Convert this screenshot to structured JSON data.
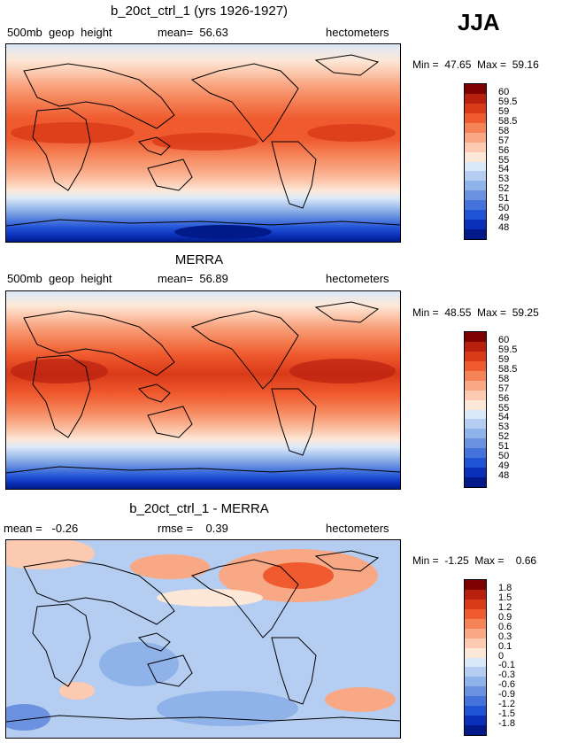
{
  "season": "JJA",
  "panels": [
    {
      "title": "b_20ct_ctrl_1 (yrs 1926-1927)",
      "left_label": "500mb  geop  height",
      "center_label": "mean=  56.63",
      "right_label": "hectometers",
      "minmax": "Min =  47.65  Max =  59.16",
      "colorbar": {
        "labels": [
          "60",
          "59.5",
          "59",
          "58.5",
          "58",
          "57",
          "56",
          "55",
          "54",
          "53",
          "52",
          "51",
          "50",
          "49",
          "48"
        ],
        "colors": [
          "#7f0000",
          "#b81f0f",
          "#d93a18",
          "#ef5a2e",
          "#f58358",
          "#f9a885",
          "#fccab0",
          "#fde8d8",
          "#dbe8f8",
          "#b5cdf0",
          "#8fb2e8",
          "#6b92e0",
          "#4473dc",
          "#2052d6",
          "#0a2fb8",
          "#001a8a"
        ]
      }
    },
    {
      "title": "MERRA",
      "left_label": "500mb  geop  height",
      "center_label": "mean=  56.89",
      "right_label": "hectometers",
      "minmax": "Min =  48.55  Max =  59.25",
      "colorbar": {
        "labels": [
          "60",
          "59.5",
          "59",
          "58.5",
          "58",
          "57",
          "56",
          "55",
          "54",
          "53",
          "52",
          "51",
          "50",
          "49",
          "48"
        ],
        "colors": [
          "#7f0000",
          "#b81f0f",
          "#d93a18",
          "#ef5a2e",
          "#f58358",
          "#f9a885",
          "#fccab0",
          "#fde8d8",
          "#dbe8f8",
          "#b5cdf0",
          "#8fb2e8",
          "#6b92e0",
          "#4473dc",
          "#2052d6",
          "#0a2fb8",
          "#001a8a"
        ]
      }
    },
    {
      "title": "b_20ct_ctrl_1 - MERRA",
      "left_label": "mean =   -0.26",
      "center_label": "rmse =    0.39",
      "right_label": "hectometers",
      "minmax": "Min =  -1.25  Max =    0.66",
      "colorbar": {
        "labels": [
          "1.8",
          "1.5",
          "1.2",
          "0.9",
          "0.6",
          "0.3",
          "0.1",
          "0",
          "-0.1",
          "-0.3",
          "-0.6",
          "-0.9",
          "-1.2",
          "-1.5",
          "-1.8"
        ],
        "colors": [
          "#7f0000",
          "#b81f0f",
          "#d93a18",
          "#ef5a2e",
          "#f58358",
          "#f9a885",
          "#fccab0",
          "#fde8d8",
          "#dbe8f8",
          "#b5cdf0",
          "#8fb2e8",
          "#6b92e0",
          "#4473dc",
          "#2052d6",
          "#0a2fb8",
          "#001a8a"
        ]
      }
    }
  ]
}
